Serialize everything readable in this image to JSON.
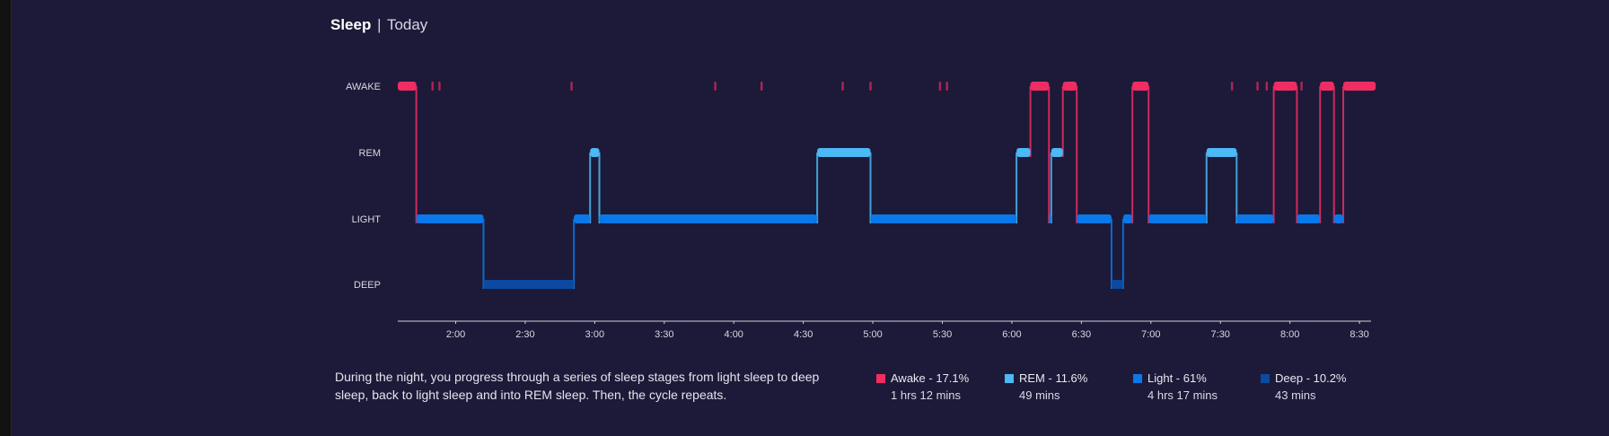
{
  "header": {
    "title": "Sleep",
    "separator": "|",
    "period": "Today"
  },
  "colors": {
    "awake": "#f02d63",
    "rem": "#4cb8f5",
    "light": "#0a78e8",
    "deep": "#0b4aa0",
    "background": "#1c1a38"
  },
  "chart_data": {
    "type": "step",
    "y_categories": [
      "AWAKE",
      "REM",
      "LIGHT",
      "DEEP"
    ],
    "x_range": [
      "1:35",
      "8:35"
    ],
    "x_ticks": [
      "2:00",
      "2:30",
      "3:00",
      "3:30",
      "4:00",
      "4:30",
      "5:00",
      "5:30",
      "6:00",
      "6:30",
      "7:00",
      "7:30",
      "8:00",
      "8:30"
    ],
    "segments": [
      {
        "stage": "AWAKE",
        "start": "1:35",
        "end": "1:43"
      },
      {
        "stage": "LIGHT",
        "start": "1:43",
        "end": "2:12"
      },
      {
        "stage": "DEEP",
        "start": "2:12",
        "end": "2:51"
      },
      {
        "stage": "LIGHT",
        "start": "2:51",
        "end": "2:58"
      },
      {
        "stage": "REM",
        "start": "2:58",
        "end": "3:02"
      },
      {
        "stage": "LIGHT",
        "start": "3:02",
        "end": "4:36"
      },
      {
        "stage": "REM",
        "start": "4:36",
        "end": "4:59"
      },
      {
        "stage": "LIGHT",
        "start": "4:59",
        "end": "6:02"
      },
      {
        "stage": "REM",
        "start": "6:02",
        "end": "6:08"
      },
      {
        "stage": "AWAKE",
        "start": "6:08",
        "end": "6:16"
      },
      {
        "stage": "LIGHT",
        "start": "6:16",
        "end": "6:17"
      },
      {
        "stage": "REM",
        "start": "6:17",
        "end": "6:22"
      },
      {
        "stage": "AWAKE",
        "start": "6:22",
        "end": "6:28"
      },
      {
        "stage": "LIGHT",
        "start": "6:28",
        "end": "6:43"
      },
      {
        "stage": "DEEP",
        "start": "6:43",
        "end": "6:48"
      },
      {
        "stage": "LIGHT",
        "start": "6:48",
        "end": "6:52"
      },
      {
        "stage": "AWAKE",
        "start": "6:52",
        "end": "6:59"
      },
      {
        "stage": "LIGHT",
        "start": "6:59",
        "end": "7:24"
      },
      {
        "stage": "REM",
        "start": "7:24",
        "end": "7:37"
      },
      {
        "stage": "LIGHT",
        "start": "7:37",
        "end": "7:53"
      },
      {
        "stage": "AWAKE",
        "start": "7:53",
        "end": "8:03"
      },
      {
        "stage": "LIGHT",
        "start": "8:03",
        "end": "8:13"
      },
      {
        "stage": "AWAKE",
        "start": "8:13",
        "end": "8:19"
      },
      {
        "stage": "LIGHT",
        "start": "8:19",
        "end": "8:23"
      },
      {
        "stage": "AWAKE",
        "start": "8:23",
        "end": "8:37"
      }
    ],
    "brief_awakenings": [
      "1:50",
      "1:53",
      "2:50",
      "3:52",
      "4:12",
      "4:47",
      "4:59",
      "5:29",
      "5:32",
      "7:35",
      "7:46",
      "7:50",
      "8:05"
    ]
  },
  "description": "During the night, you progress through a series of sleep stages from light sleep to deep sleep, back to light sleep and into REM sleep. Then, the cycle repeats.",
  "legend": [
    {
      "name": "Awake",
      "label": "Awake - 17.1%",
      "percent": 17.1,
      "duration": "1 hrs 12 mins",
      "color": "#f02d63"
    },
    {
      "name": "REM",
      "label": "REM - 11.6%",
      "percent": 11.6,
      "duration": "49 mins",
      "color": "#4cb8f5"
    },
    {
      "name": "Light",
      "label": "Light - 61%",
      "percent": 61,
      "duration": "4 hrs 17 mins",
      "color": "#0a78e8"
    },
    {
      "name": "Deep",
      "label": "Deep - 10.2%",
      "percent": 10.2,
      "duration": "43 mins",
      "color": "#0b4aa0"
    }
  ]
}
